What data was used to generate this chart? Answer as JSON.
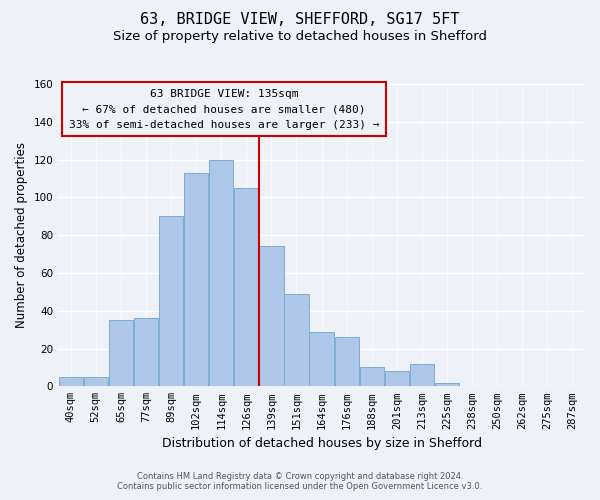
{
  "title": "63, BRIDGE VIEW, SHEFFORD, SG17 5FT",
  "subtitle": "Size of property relative to detached houses in Shefford",
  "xlabel": "Distribution of detached houses by size in Shefford",
  "ylabel": "Number of detached properties",
  "categories": [
    "40sqm",
    "52sqm",
    "65sqm",
    "77sqm",
    "89sqm",
    "102sqm",
    "114sqm",
    "126sqm",
    "139sqm",
    "151sqm",
    "164sqm",
    "176sqm",
    "188sqm",
    "201sqm",
    "213sqm",
    "225sqm",
    "238sqm",
    "250sqm",
    "262sqm",
    "275sqm",
    "287sqm"
  ],
  "values": [
    5,
    5,
    35,
    36,
    90,
    113,
    120,
    105,
    74,
    49,
    29,
    26,
    10,
    8,
    12,
    2,
    0,
    0,
    0,
    0,
    0
  ],
  "bar_color": "#aec6e8",
  "bar_edge_color": "#7aaed4",
  "vline_color": "#cc0000",
  "vline_x_index": 7.5,
  "ylim": [
    0,
    160
  ],
  "annotation_line1": "63 BRIDGE VIEW: 135sqm",
  "annotation_line2": "← 67% of detached houses are smaller (480)",
  "annotation_line3": "33% of semi-detached houses are larger (233) →",
  "box_edge_color": "#cc0000",
  "footer_line1": "Contains HM Land Registry data © Crown copyright and database right 2024.",
  "footer_line2": "Contains public sector information licensed under the Open Government Licence v3.0.",
  "background_color": "#eef2f8",
  "title_fontsize": 11,
  "subtitle_fontsize": 9.5,
  "tick_fontsize": 7.5,
  "ylabel_fontsize": 8.5,
  "xlabel_fontsize": 9,
  "footer_fontsize": 6,
  "annotation_fontsize": 8
}
